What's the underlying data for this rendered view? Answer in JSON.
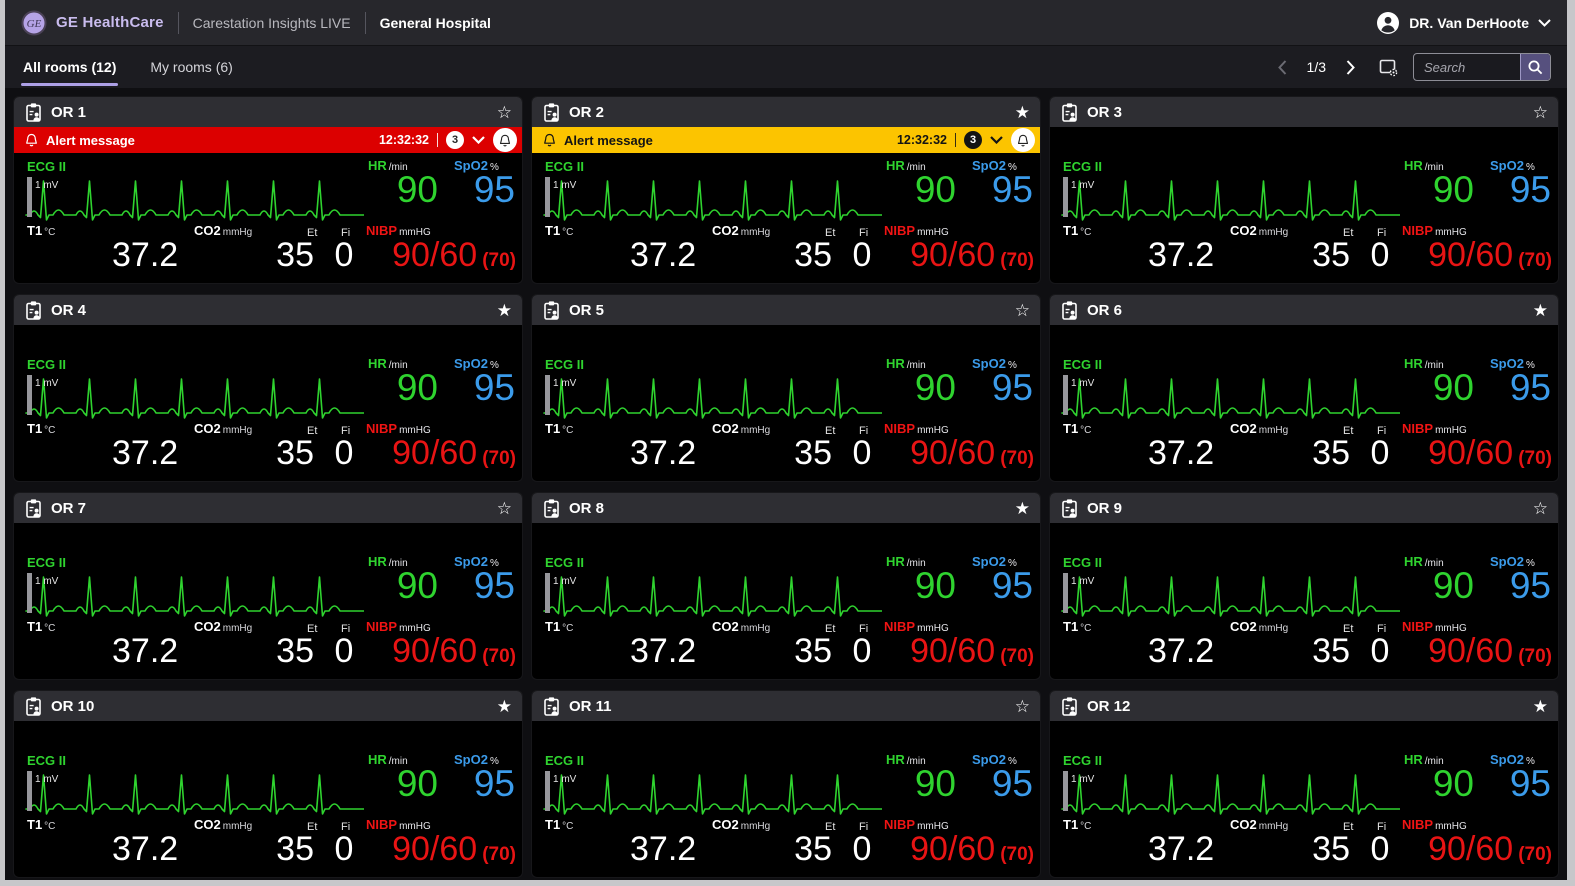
{
  "header": {
    "brand": "GE HealthCare",
    "product": "Carestation Insights LIVE",
    "facility": "General Hospital",
    "user": "DR. Van DerHoote"
  },
  "toolbar": {
    "tabs": [
      {
        "label": "All rooms (12)",
        "active": true
      },
      {
        "label": "My rooms (6)",
        "active": false
      }
    ],
    "page_indicator": "1/3",
    "search_placeholder": "Search"
  },
  "icons": {
    "star_filled": "★",
    "star_outline": "☆"
  },
  "colors": {
    "accent_purple": "#ada0e6",
    "brand_text": "#c9bcee",
    "ecg_green": "#2fd32f",
    "spo2_blue": "#3b9bea",
    "nibp_red": "#e81414",
    "alert_critical_bg": "#dc0000",
    "alert_warning_bg": "#fcc400",
    "card_bg": "#000000",
    "card_header_bg": "#2e2e33"
  },
  "vitals": {
    "ecg_label": "ECG II",
    "ecg_scale": "1 mV",
    "hr_label": "HR",
    "hr_unit": "/min",
    "hr_value": "90",
    "spo2_label": "SpO2",
    "spo2_unit": "%",
    "spo2_value": "95",
    "t1_label": "T1",
    "t1_unit": "°C",
    "t1_value": "37.2",
    "co2_label": "CO2",
    "co2_unit": "mmHg",
    "et_label": "Et",
    "fi_label": "Fi",
    "et_value": "35",
    "fi_value": "0",
    "nibp_label": "NIBP",
    "nibp_unit": "mmHG",
    "nibp_value": "90/60",
    "nibp_mean": "(70)"
  },
  "rooms": [
    {
      "name": "OR 1",
      "starred": false,
      "alert": {
        "severity": "critical",
        "message": "Alert message",
        "time": "12:32:32",
        "count": "3"
      }
    },
    {
      "name": "OR 2",
      "starred": true,
      "alert": {
        "severity": "warning",
        "message": "Alert message",
        "time": "12:32:32",
        "count": "3"
      }
    },
    {
      "name": "OR 3",
      "starred": false,
      "alert": null
    },
    {
      "name": "OR 4",
      "starred": true,
      "alert": null
    },
    {
      "name": "OR 5",
      "starred": false,
      "alert": null
    },
    {
      "name": "OR 6",
      "starred": true,
      "alert": null
    },
    {
      "name": "OR 7",
      "starred": false,
      "alert": null
    },
    {
      "name": "OR 8",
      "starred": true,
      "alert": null
    },
    {
      "name": "OR 9",
      "starred": false,
      "alert": null
    },
    {
      "name": "OR 10",
      "starred": true,
      "alert": null
    },
    {
      "name": "OR 11",
      "starred": false,
      "alert": null
    },
    {
      "name": "OR 12",
      "starred": true,
      "alert": null
    }
  ]
}
